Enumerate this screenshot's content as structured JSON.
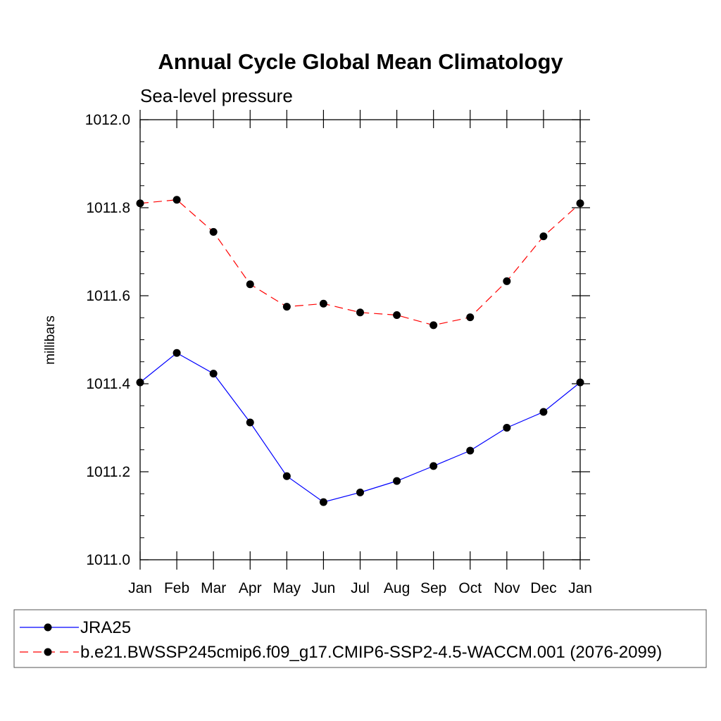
{
  "chart_data": {
    "type": "line",
    "title": "Annual Cycle Global Mean Climatology",
    "subtitle": "Sea-level pressure",
    "ylabel": "millibars",
    "xlabel": "",
    "ylim": [
      1011.0,
      1012.0
    ],
    "yticks": [
      1011.0,
      1011.2,
      1011.4,
      1011.6,
      1011.8,
      1012.0
    ],
    "ytick_labels": [
      "1011.0",
      "1011.2",
      "1011.4",
      "1011.6",
      "1011.8",
      "1012.0"
    ],
    "categories": [
      "Jan",
      "Feb",
      "Mar",
      "Apr",
      "May",
      "Jun",
      "Jul",
      "Aug",
      "Sep",
      "Oct",
      "Nov",
      "Dec",
      "Jan"
    ],
    "series": [
      {
        "name": "JRA25",
        "color": "#0000ff",
        "dash": "solid",
        "values": [
          1011.403,
          1011.47,
          1011.423,
          1011.312,
          1011.19,
          1011.131,
          1011.153,
          1011.179,
          1011.213,
          1011.248,
          1011.3,
          1011.336,
          1011.403
        ]
      },
      {
        "name": "b.e21.BWSSP245cmip6.f09_g17.CMIP6-SSP2-4.5-WACCM.001 (2076-2099)",
        "color": "#ff0000",
        "dash": "dashed",
        "values": [
          1011.81,
          1011.818,
          1011.745,
          1011.626,
          1011.575,
          1011.582,
          1011.562,
          1011.556,
          1011.533,
          1011.551,
          1011.633,
          1011.735,
          1011.81
        ]
      }
    ],
    "marker_color": "#000000",
    "legend_position": "bottom"
  }
}
